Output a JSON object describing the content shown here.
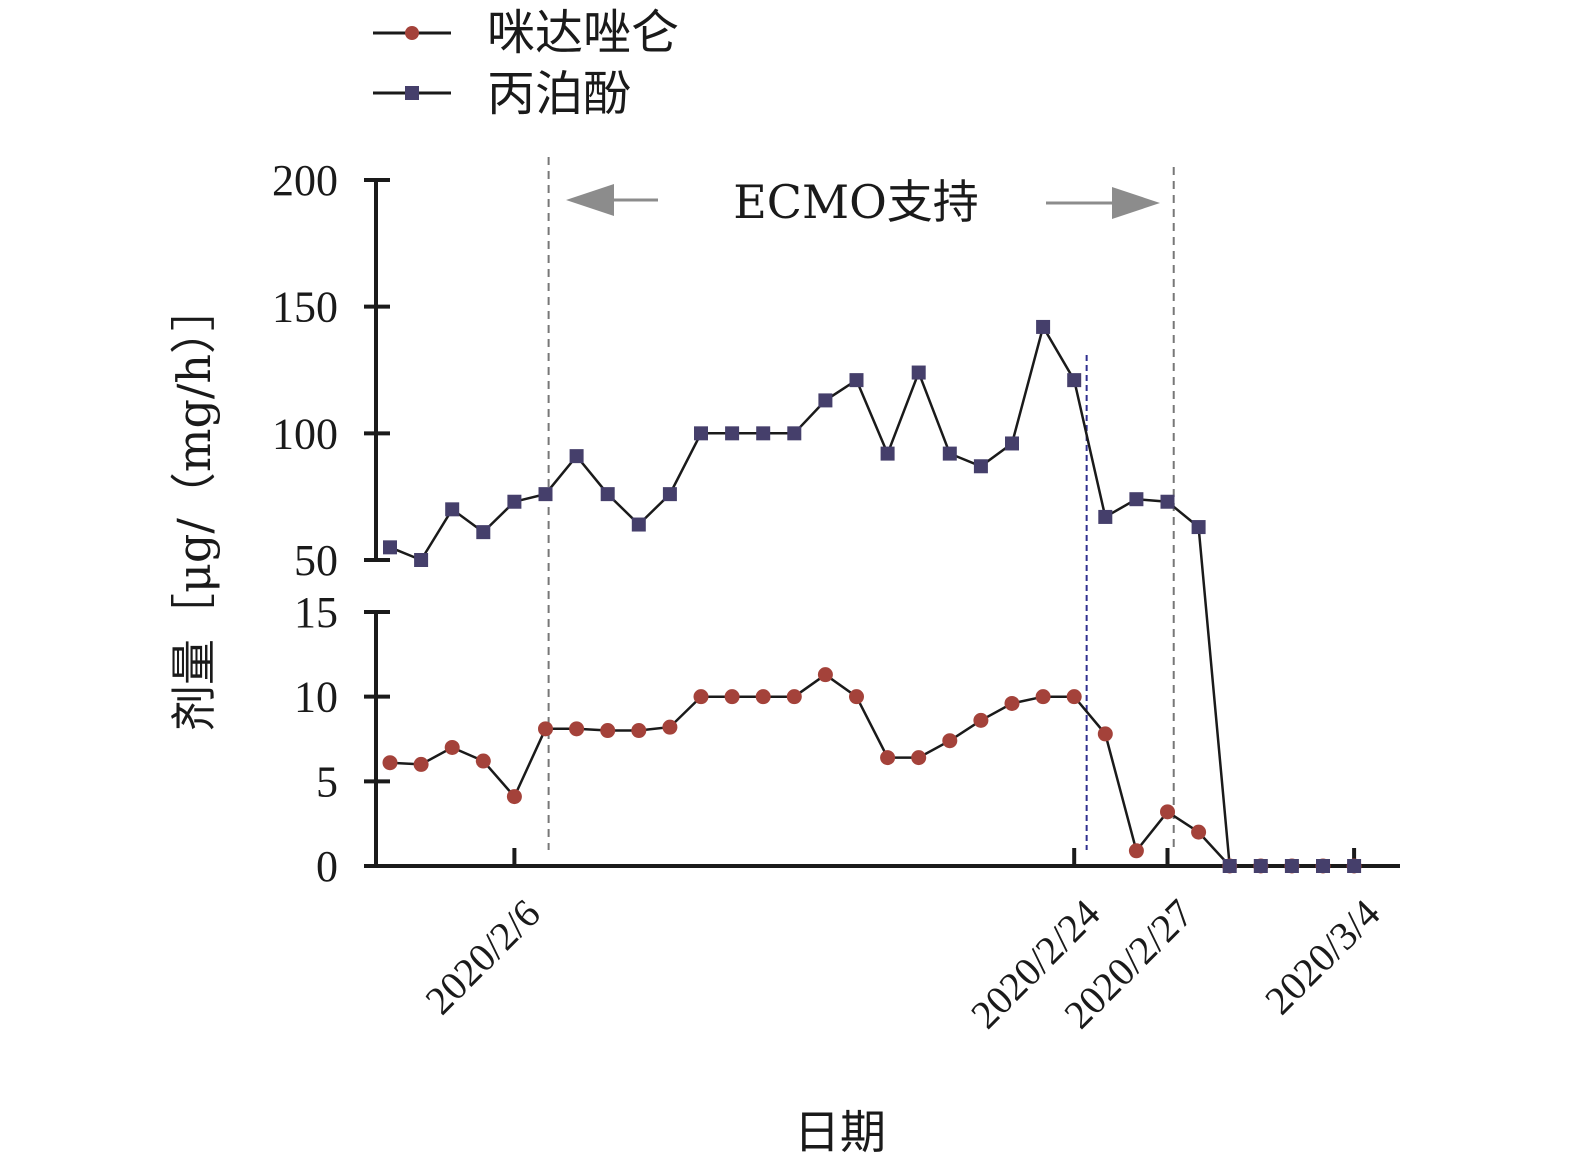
{
  "chart_data": {
    "type": "line",
    "xlabel": "日期",
    "ylabel": "剂量［μg/（mg/h）］",
    "x_tick_labels": [
      {
        "index": 4,
        "label": "2020/2/6"
      },
      {
        "index": 22,
        "label": "2020/2/24"
      },
      {
        "index": 25,
        "label": "2020/2/27"
      },
      {
        "index": 31,
        "label": "2020/3/4"
      }
    ],
    "upper_axis": {
      "ylim": [
        50,
        200
      ],
      "ticks": [
        "50",
        "100",
        "150",
        "200"
      ]
    },
    "lower_axis": {
      "ylim": [
        0,
        15
      ],
      "ticks": [
        "0",
        "5",
        "10",
        "15"
      ]
    },
    "x_count": 32,
    "series": [
      {
        "name": "咪达唑仑",
        "color": "#a4423a",
        "marker": "circle",
        "axis": "lower",
        "values": [
          6.1,
          6.0,
          7.0,
          6.2,
          4.1,
          8.1,
          8.1,
          8.0,
          8.0,
          8.2,
          10.0,
          10.0,
          10.0,
          10.0,
          11.3,
          10.0,
          6.4,
          6.4,
          7.4,
          8.6,
          9.6,
          10.0,
          10.0,
          7.8,
          0.9,
          3.2,
          2.0,
          0,
          0,
          0,
          0,
          0
        ]
      },
      {
        "name": "丙泊酚",
        "color": "#453f6b",
        "marker": "square",
        "axis": "upper",
        "values": [
          55,
          50,
          70,
          61,
          73,
          76,
          91,
          76,
          64,
          76,
          100,
          100,
          100,
          100,
          113,
          121,
          92,
          124,
          92,
          87,
          96,
          142,
          121,
          67,
          74,
          73,
          63,
          0,
          0,
          0,
          0,
          0
        ]
      }
    ],
    "annotations": {
      "ecmo_label": "ECMO支持",
      "ecmo_start_index": 5.1,
      "ecmo_end_index": 25.2,
      "event_line_index": 22.4
    },
    "legend_position": "top-left",
    "grid": false
  },
  "colors": {
    "axis": "#1a1a1a",
    "line": "#1a1a1a",
    "guide": "#777777",
    "arrow": "#8c8c8c",
    "event_line": "#2f2f8f"
  }
}
